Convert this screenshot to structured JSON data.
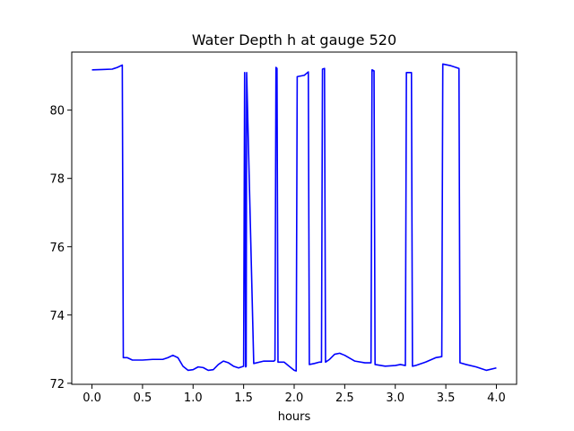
{
  "chart_data": {
    "type": "line",
    "title": "Water Depth h at gauge 520",
    "xlabel": "hours",
    "ylabel": "",
    "xlim": [
      -0.2,
      4.2
    ],
    "ylim": [
      71.97,
      81.7
    ],
    "xticks": [
      0.0,
      0.5,
      1.0,
      1.5,
      2.0,
      2.5,
      3.0,
      3.5,
      4.0
    ],
    "xtick_labels": [
      "0.0",
      "0.5",
      "1.0",
      "1.5",
      "2.0",
      "2.5",
      "3.0",
      "3.5",
      "4.0"
    ],
    "yticks": [
      72,
      74,
      76,
      78,
      80
    ],
    "ytick_labels": [
      "72",
      "74",
      "76",
      "78",
      "80"
    ],
    "grid": false,
    "series": [
      {
        "color": "#0000ff",
        "x": [
          0.0,
          0.1,
          0.2,
          0.25,
          0.3,
          0.31,
          0.35,
          0.4,
          0.5,
          0.6,
          0.7,
          0.75,
          0.8,
          0.85,
          0.9,
          0.95,
          1.0,
          1.05,
          1.1,
          1.15,
          1.2,
          1.25,
          1.3,
          1.35,
          1.4,
          1.45,
          1.5,
          1.51,
          1.52,
          1.525,
          1.53,
          1.6,
          1.7,
          1.8,
          1.81,
          1.82,
          1.83,
          1.84,
          1.9,
          1.95,
          2.0,
          2.02,
          2.03,
          2.1,
          2.14,
          2.15,
          2.2,
          2.25,
          2.27,
          2.28,
          2.3,
          2.31,
          2.35,
          2.4,
          2.45,
          2.5,
          2.6,
          2.7,
          2.76,
          2.77,
          2.79,
          2.8,
          2.9,
          3.0,
          3.05,
          3.1,
          3.11,
          3.16,
          3.17,
          3.2,
          3.3,
          3.4,
          3.46,
          3.47,
          3.55,
          3.63,
          3.64,
          3.7,
          3.8,
          3.9,
          4.0
        ],
        "y": [
          81.18,
          81.19,
          81.2,
          81.25,
          81.32,
          72.75,
          72.75,
          72.68,
          72.68,
          72.7,
          72.7,
          72.75,
          72.82,
          72.75,
          72.5,
          72.38,
          72.4,
          72.48,
          72.46,
          72.38,
          72.4,
          72.55,
          72.65,
          72.6,
          72.5,
          72.45,
          72.5,
          81.1,
          72.48,
          72.5,
          81.1,
          72.58,
          72.65,
          72.65,
          72.68,
          81.25,
          81.22,
          72.62,
          72.62,
          72.5,
          72.38,
          72.36,
          80.98,
          81.02,
          81.12,
          72.55,
          72.58,
          72.62,
          72.62,
          81.2,
          81.22,
          72.62,
          72.7,
          72.85,
          72.88,
          72.82,
          72.65,
          72.6,
          72.6,
          81.18,
          81.15,
          72.55,
          72.5,
          72.52,
          72.55,
          72.52,
          81.1,
          81.1,
          72.5,
          72.52,
          72.62,
          72.75,
          72.78,
          81.35,
          81.3,
          81.22,
          72.6,
          72.55,
          72.48,
          72.38,
          72.45
        ]
      }
    ]
  }
}
